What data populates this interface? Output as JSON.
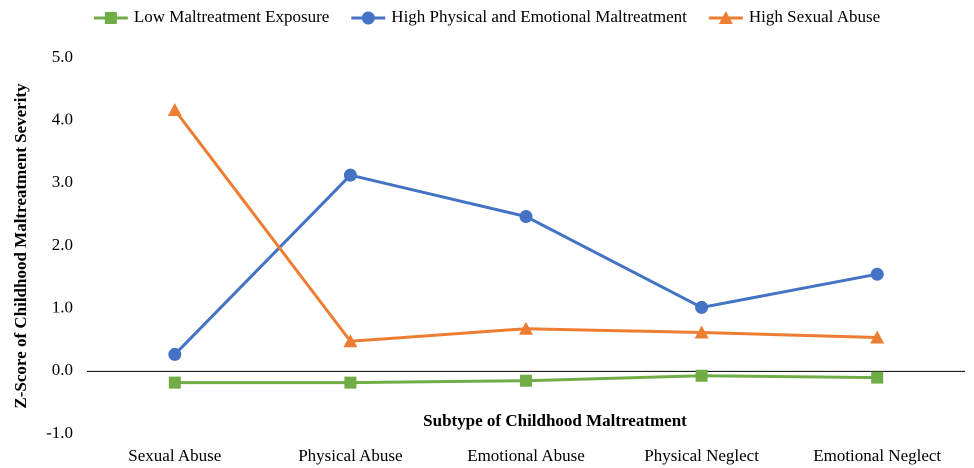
{
  "chart_data": {
    "type": "line",
    "x_label": "Subtype of Childhood Maltreatment",
    "y_label": "Z-Score of Childhood Maltreatment Severity",
    "categories": [
      "Sexual Abuse",
      "Physical Abuse",
      "Emotional Abuse",
      "Physical Neglect",
      "Emotional Neglect"
    ],
    "series": [
      {
        "name": "Low Maltreatment Exposure",
        "color": "#70ad47",
        "marker": "square",
        "values": [
          -0.18,
          -0.18,
          -0.15,
          -0.07,
          -0.1
        ]
      },
      {
        "name": "High Physical and Emotional Maltreatment",
        "color": "#4472c4",
        "marker": "circle",
        "values": [
          0.27,
          3.13,
          2.47,
          1.02,
          1.55
        ]
      },
      {
        "name": "High Sexual Abuse",
        "color": "#ed7d31",
        "marker": "triangle",
        "values": [
          4.17,
          0.48,
          0.68,
          0.62,
          0.54
        ]
      }
    ],
    "ylim": [
      -1,
      5
    ],
    "yticks": [
      {
        "value": -1,
        "label": "-1.0"
      },
      {
        "value": 0,
        "label": "0.0"
      },
      {
        "value": 1,
        "label": "1.0"
      },
      {
        "value": 2,
        "label": "2.0"
      },
      {
        "value": 3,
        "label": "3.0"
      },
      {
        "value": 4,
        "label": "4.0"
      },
      {
        "value": 5,
        "label": "5.0"
      }
    ],
    "grid": false,
    "legend": "top"
  }
}
